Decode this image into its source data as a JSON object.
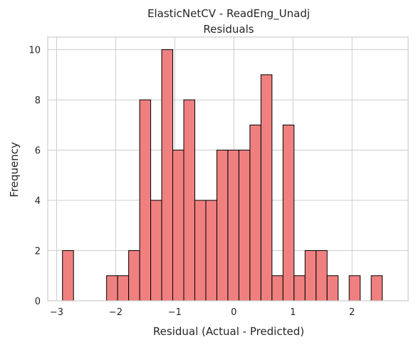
{
  "chart_data": {
    "type": "bar",
    "title": "ElasticNetCV - ReadEng_Unadj",
    "subtitle": "Residuals",
    "xlabel": "Residual (Actual - Predicted)",
    "ylabel": "Frequency",
    "xlim": [
      -3.15,
      2.95
    ],
    "ylim": [
      0,
      10.5
    ],
    "xticks": [
      -3,
      -2,
      -1,
      0,
      1,
      2
    ],
    "xtick_labels": [
      "−3",
      "−2",
      "−1",
      "0",
      "1",
      "2"
    ],
    "yticks": [
      0,
      2,
      4,
      6,
      8,
      10
    ],
    "ytick_labels": [
      "0",
      "2",
      "4",
      "6",
      "8",
      "10"
    ],
    "grid": true,
    "bar_color": "#f08080",
    "edge_color": "#000000",
    "bin_start": -2.9,
    "bin_width": 0.1866,
    "counts": [
      2,
      0,
      0,
      0,
      1,
      1,
      2,
      8,
      4,
      10,
      6,
      8,
      4,
      4,
      6,
      6,
      6,
      7,
      9,
      1,
      7,
      1,
      2,
      2,
      1,
      0,
      1,
      0,
      1
    ]
  }
}
